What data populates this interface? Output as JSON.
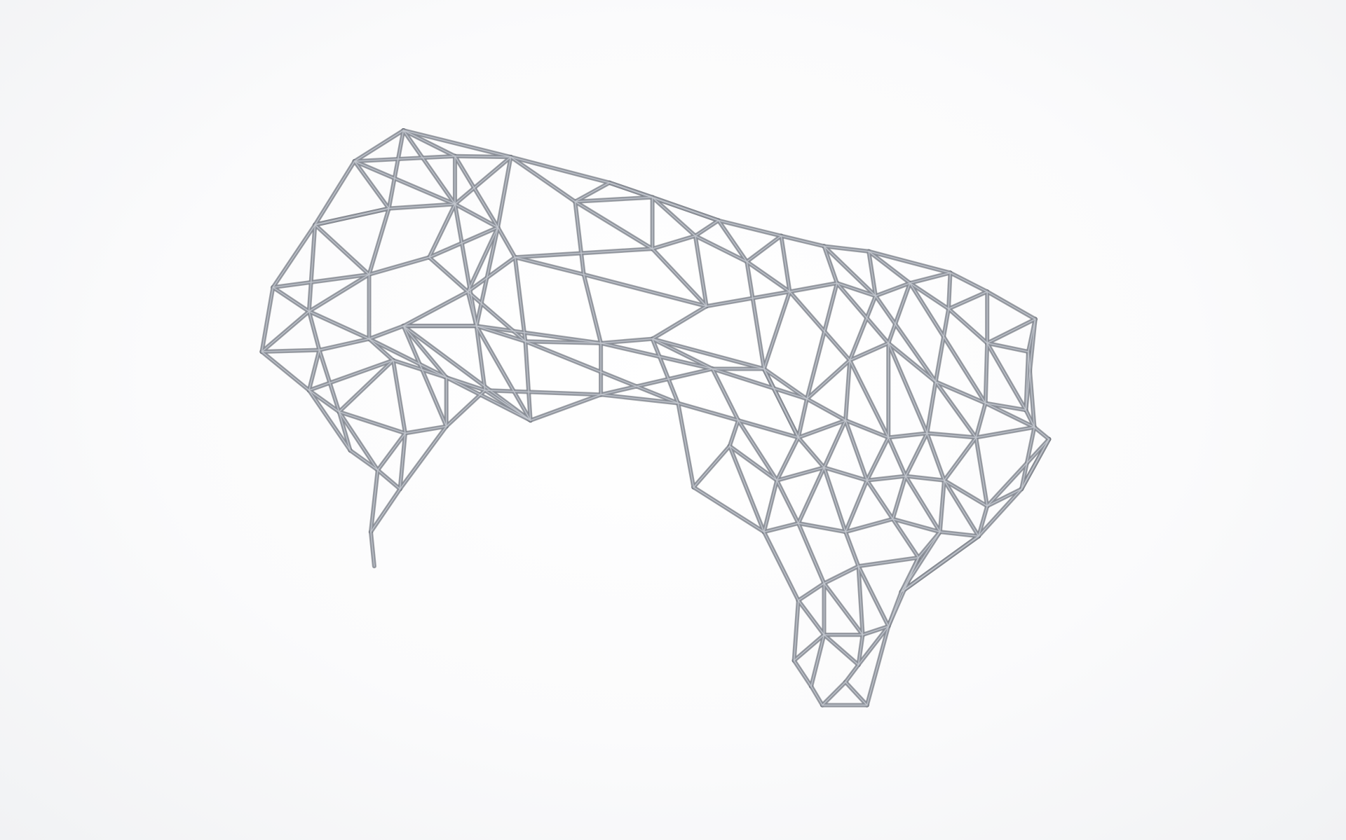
{
  "scene": {
    "background_color": "#fbfbfc",
    "wire_color": "#8e939c",
    "wire_highlight_color": "#c4c8cf",
    "object": "lattice-wireframe-sculpture"
  }
}
